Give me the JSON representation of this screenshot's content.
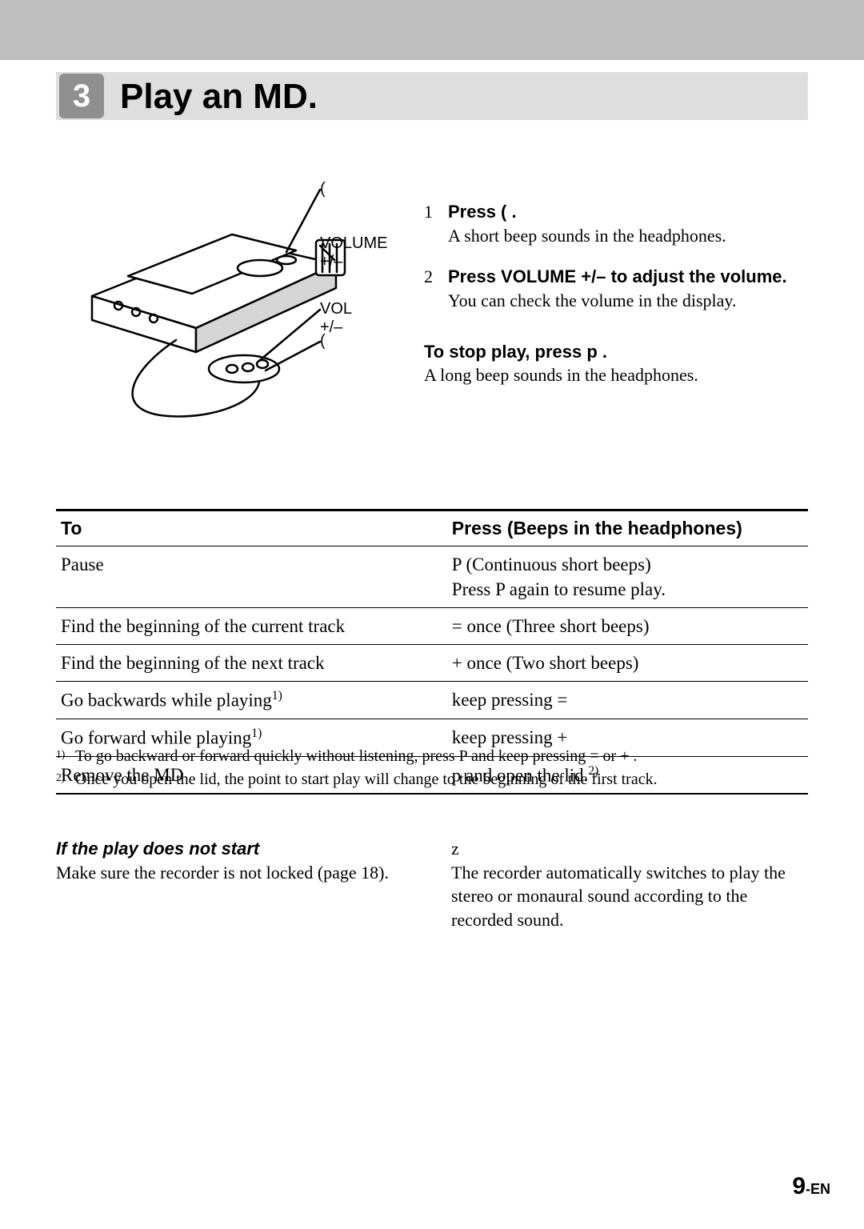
{
  "section": {
    "step_number": "3",
    "title": "Play an MD."
  },
  "diagram": {
    "labels": {
      "play": "(",
      "volume_main": "VOLUME\n+/–",
      "vol_remote": "VOL +/–",
      "play_remote": "("
    }
  },
  "steps": [
    {
      "n": "1",
      "bold": "Press ( .",
      "detail": "A short beep sounds in the headphones."
    },
    {
      "n": "2",
      "bold": "Press VOLUME +/– to adjust the volume.",
      "detail": "You can check the volume in the display."
    }
  ],
  "stop": {
    "bold": "To stop play, press p .",
    "detail": "A long beep sounds in the headphones."
  },
  "table": {
    "headers": [
      "To",
      "Press (Beeps in the headphones)"
    ],
    "rows": [
      [
        "Pause",
        "P  (Continuous short beeps)\nPress P  again to resume play."
      ],
      [
        "Find the beginning of the current track",
        "=     once (Three short beeps)"
      ],
      [
        "Find the beginning of the next track",
        "+     once (Two short beeps)"
      ],
      [
        "Go backwards while playing<sup>1)</sup>",
        "keep pressing ="
      ],
      [
        "Go forward while playing<sup>1)</sup>",
        "keep pressing +"
      ],
      [
        "Remove the MD",
        "p  and open the lid.<sup>2)</sup>"
      ]
    ]
  },
  "footnotes": [
    "To go backward or forward quickly without listening, press P  and keep pressing =     or +    .",
    "Once you open the lid, the point to start play will change to the beginning of the first track."
  ],
  "bottom": {
    "left": {
      "heading": "If the play does not start",
      "body": "Make sure the recorder is not locked (page 18)."
    },
    "right": {
      "heading": "z",
      "body": "The recorder automatically switches to play the stereo or monaural sound according to the recorded sound."
    }
  },
  "pagenum": {
    "num": "9",
    "suffix": "-EN"
  },
  "colors": {
    "topband": "#bfbfbf",
    "titleband": "#dedede",
    "stepbadge": "#8f8f8f"
  }
}
